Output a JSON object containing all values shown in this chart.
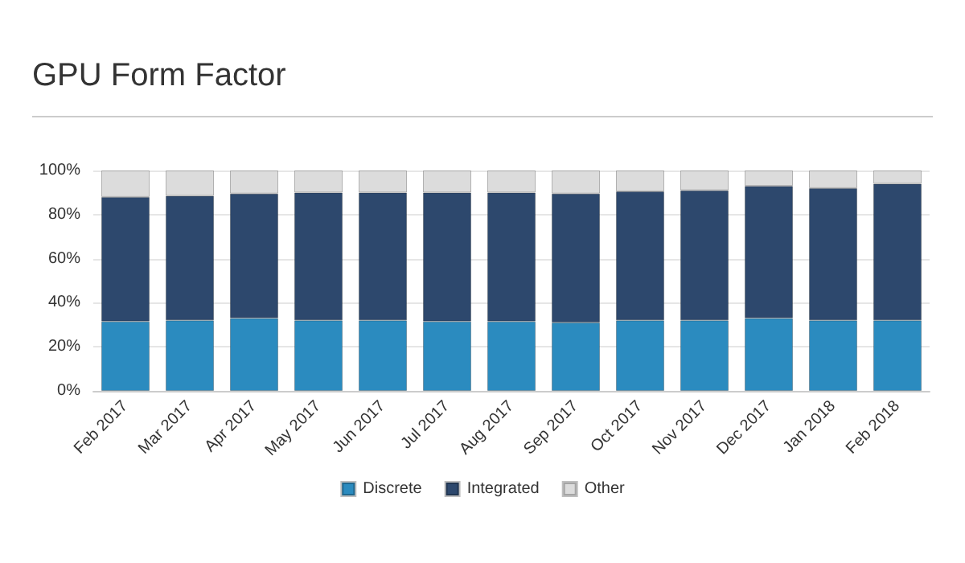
{
  "chart_data": {
    "type": "bar",
    "title": "GPU Form Factor",
    "stacked": true,
    "categories": [
      "Feb 2017",
      "Mar 2017",
      "Apr 2017",
      "May 2017",
      "Jun 2017",
      "Jul 2017",
      "Aug 2017",
      "Sep 2017",
      "Oct 2017",
      "Nov 2017",
      "Dec 2017",
      "Jan 2018",
      "Feb 2018"
    ],
    "series": [
      {
        "name": "Discrete",
        "color": "#2b8bbf",
        "values": [
          31.5,
          32,
          33,
          32,
          32,
          31.5,
          31.5,
          31,
          32,
          32,
          33,
          32,
          32
        ]
      },
      {
        "name": "Integrated",
        "color": "#2d486d",
        "values": [
          56.5,
          56.5,
          56.5,
          58,
          58,
          58.5,
          58.5,
          58.5,
          58.5,
          59,
          60,
          60,
          62
        ]
      },
      {
        "name": "Other",
        "color": "#dcdcdc",
        "values": [
          12,
          11.5,
          10.5,
          10,
          10,
          10,
          10,
          10.5,
          9.5,
          9,
          7,
          8,
          6
        ]
      }
    ],
    "ylim": [
      0,
      100
    ],
    "yticks": [
      {
        "value": 0,
        "label": "0%"
      },
      {
        "value": 20,
        "label": "20%"
      },
      {
        "value": 40,
        "label": "40%"
      },
      {
        "value": 60,
        "label": "60%"
      },
      {
        "value": 80,
        "label": "80%"
      },
      {
        "value": 100,
        "label": "100%"
      }
    ],
    "grid": "y",
    "legend": "bottom"
  }
}
